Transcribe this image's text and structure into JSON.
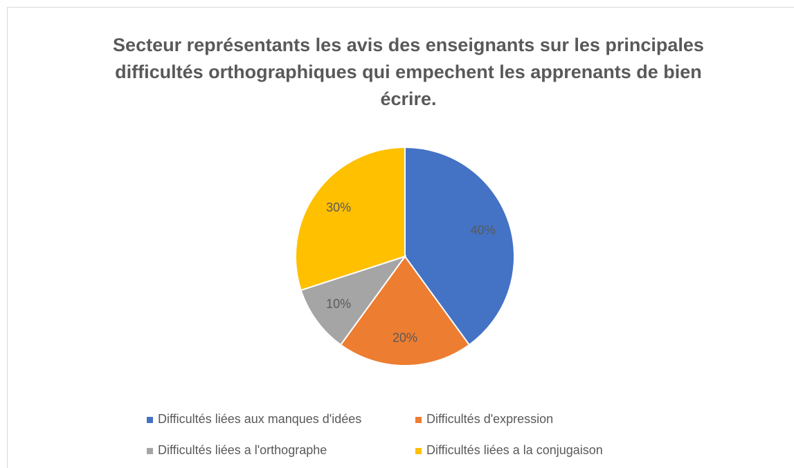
{
  "chart_data": {
    "type": "pie",
    "title": "Secteur représentants les avis des enseignants sur les principales difficultés orthographiques qui empechent les apprenants de bien écrire.",
    "categories": [
      "Difficultés liées aux manques d'idées",
      "Difficultés d'expression",
      "Difficultés liées a l'orthographe",
      "Difficultés liées a la conjugaison"
    ],
    "values": [
      40,
      20,
      10,
      30
    ],
    "value_labels": [
      "40%",
      "20%",
      "10%",
      "30%"
    ],
    "colors": [
      "#4472c4",
      "#ed7d31",
      "#a5a5a5",
      "#ffc000"
    ],
    "legend": "bottom"
  }
}
